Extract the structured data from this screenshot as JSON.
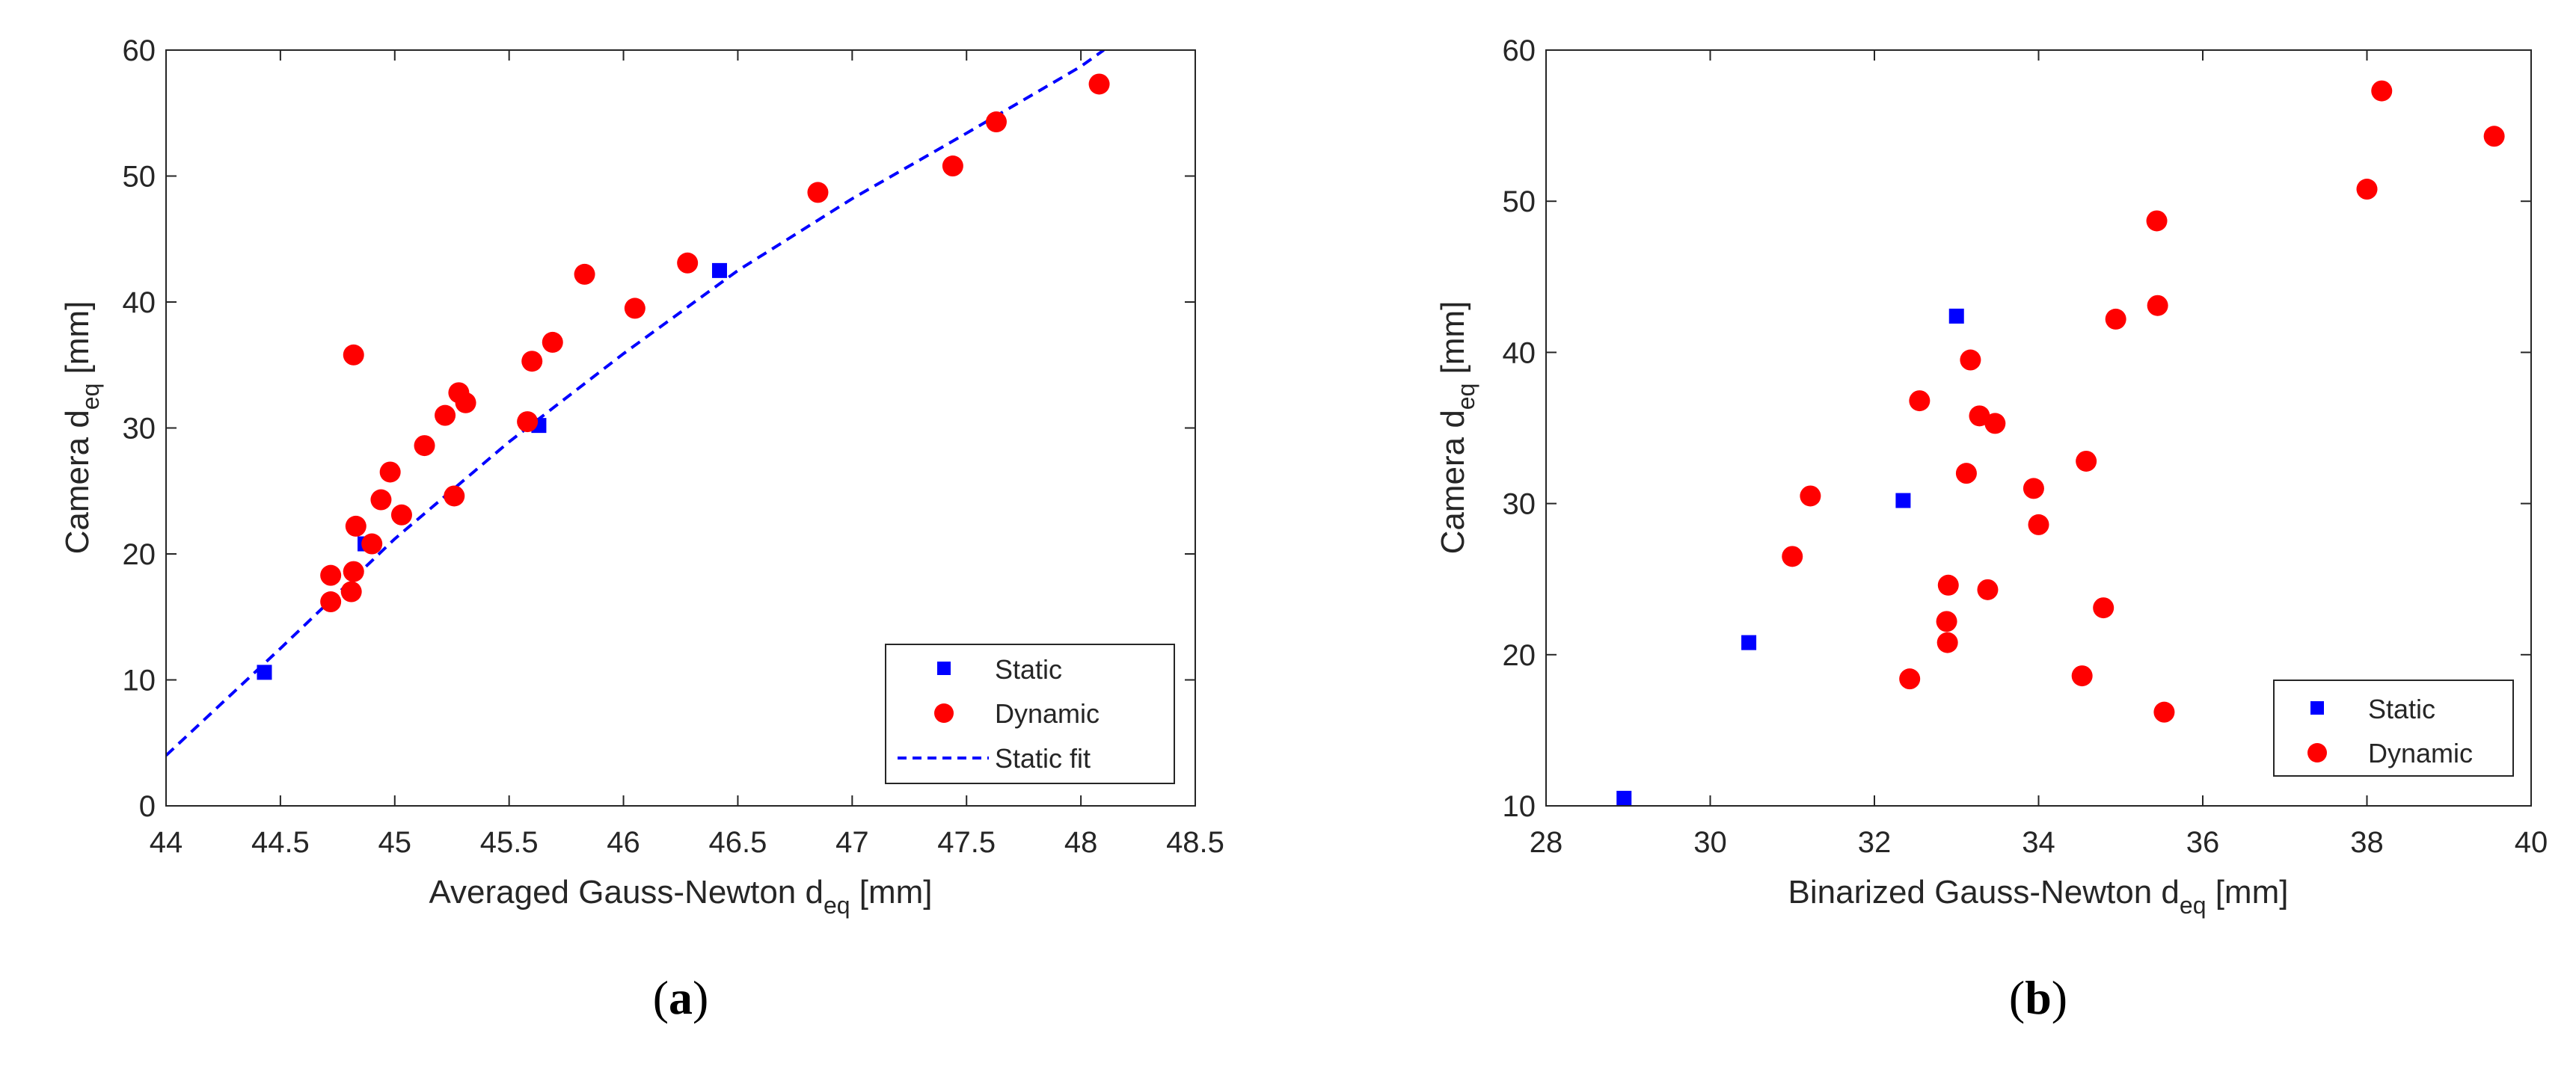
{
  "colors": {
    "static": "#0000ff",
    "dynamic": "#ff0000",
    "axis": "#262626"
  },
  "panels": [
    {
      "label_open": "(",
      "label_letter": "a",
      "label_close": ")"
    },
    {
      "label_open": "(",
      "label_letter": "b",
      "label_close": ")"
    }
  ],
  "chart_data": [
    {
      "type": "scatter",
      "title": "",
      "xlabel_main": "Averaged Gauss-Newton d",
      "xlabel_sub": "eq",
      "xlabel_unit": " [mm]",
      "ylabel_main": "Camera d",
      "ylabel_sub": "eq",
      "ylabel_unit": " [mm]",
      "xlim": [
        44,
        48.5
      ],
      "ylim": [
        0,
        60
      ],
      "xticks": [
        44,
        44.5,
        45,
        45.5,
        46,
        46.5,
        47,
        47.5,
        48,
        48.5
      ],
      "xtick_labels": [
        "44",
        "44.5",
        "45",
        "45.5",
        "46",
        "46.5",
        "47",
        "47.5",
        "48",
        "48.5"
      ],
      "yticks": [
        0,
        10,
        20,
        30,
        40,
        50,
        60
      ],
      "ytick_labels": [
        "0",
        "10",
        "20",
        "30",
        "40",
        "50",
        "60"
      ],
      "legend_position": "bottom-right",
      "legend": [
        "Static",
        "Dynamic",
        "Static fit"
      ],
      "series": [
        {
          "name": "Static",
          "marker": "square",
          "x": [
            44.43,
            44.87,
            45.63,
            46.42
          ],
          "y": [
            10.6,
            20.8,
            30.2,
            42.5
          ]
        },
        {
          "name": "Dynamic",
          "marker": "circle",
          "x": [
            44.72,
            44.81,
            44.82,
            44.83,
            44.72,
            44.82,
            44.9,
            44.94,
            44.98,
            45.03,
            45.13,
            45.22,
            45.26,
            45.28,
            45.31,
            45.58,
            45.6,
            45.69,
            45.83,
            46.05,
            46.28,
            46.85,
            47.44,
            47.63,
            48.08
          ],
          "y": [
            16.2,
            17.0,
            18.6,
            22.2,
            18.3,
            35.8,
            20.8,
            24.3,
            26.5,
            23.1,
            28.6,
            31.0,
            24.6,
            32.8,
            32.0,
            30.5,
            35.3,
            36.8,
            42.2,
            39.5,
            43.1,
            48.7,
            50.8,
            54.3,
            57.3
          ]
        },
        {
          "name": "Static fit",
          "style": "dashed",
          "x": [
            44,
            44.5,
            45,
            45.5,
            46,
            46.5,
            47,
            47.5,
            48,
            48.1
          ],
          "y": [
            4,
            12.5,
            21.2,
            28.9,
            35.9,
            42.5,
            48.2,
            53.4,
            58.7,
            60
          ]
        }
      ]
    },
    {
      "type": "scatter",
      "title": "",
      "xlabel_main": "Binarized Gauss-Newton d",
      "xlabel_sub": "eq",
      "xlabel_unit": " [mm]",
      "ylabel_main": "Camera d",
      "ylabel_sub": "eq",
      "ylabel_unit": " [mm]",
      "xlim": [
        28,
        40
      ],
      "ylim": [
        10,
        60
      ],
      "xticks": [
        28,
        30,
        32,
        34,
        36,
        38,
        40
      ],
      "xtick_labels": [
        "28",
        "30",
        "32",
        "34",
        "36",
        "38",
        "40"
      ],
      "yticks": [
        10,
        20,
        30,
        40,
        50,
        60
      ],
      "ytick_labels": [
        "10",
        "20",
        "30",
        "40",
        "50",
        "60"
      ],
      "legend_position": "bottom-right",
      "legend": [
        "Static",
        "Dynamic"
      ],
      "series": [
        {
          "name": "Static",
          "marker": "square",
          "x": [
            28.95,
            30.47,
            32.35,
            33.0
          ],
          "y": [
            10.5,
            20.8,
            30.2,
            42.4
          ]
        },
        {
          "name": "Dynamic",
          "marker": "circle",
          "x": [
            31.0,
            31.22,
            32.43,
            32.55,
            32.88,
            32.89,
            32.9,
            33.12,
            33.17,
            33.28,
            33.38,
            33.47,
            33.94,
            34.0,
            34.53,
            34.58,
            34.79,
            34.94,
            35.44,
            35.45,
            35.53,
            38.0,
            38.18,
            39.55
          ],
          "y": [
            26.5,
            30.5,
            18.4,
            36.8,
            22.2,
            20.8,
            24.6,
            32.0,
            39.5,
            35.8,
            24.3,
            35.3,
            31.0,
            28.6,
            18.6,
            32.8,
            23.1,
            42.2,
            48.7,
            43.1,
            16.2,
            50.8,
            57.3,
            54.3
          ]
        }
      ]
    }
  ]
}
